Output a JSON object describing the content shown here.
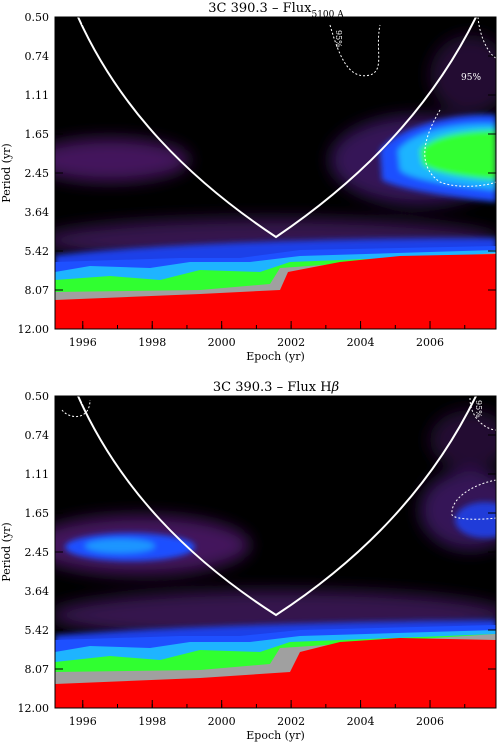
{
  "chart_data": [
    {
      "type": "heatmap",
      "title": "3C 390.3  – Flux",
      "title_sub": "5100 A",
      "title_mark": "°",
      "xlabel": "Epoch (yr)",
      "ylabel": "Period (yr)",
      "x_range": [
        1995.2,
        2007.9
      ],
      "x_ticks": [
        "1996",
        "1998",
        "2000",
        "2002",
        "2004",
        "2006"
      ],
      "x_tick_values": [
        1996,
        1998,
        2000,
        2002,
        2004,
        2006
      ],
      "y_ticks": [
        "0.50",
        "0.74",
        "1.11",
        "1.65",
        "2.45",
        "3.64",
        "5.42",
        "8.07",
        "12.00"
      ],
      "y_scale": "log",
      "cone_of_influence": {
        "x": [
          1995.2,
          1997.0,
          1998.5,
          2000.0,
          2001.6,
          2003.2,
          2004.8,
          2006.4,
          2007.9
        ],
        "period": [
          0.32,
          0.85,
          1.55,
          2.6,
          4.3,
          2.6,
          1.55,
          0.85,
          0.32
        ]
      },
      "contour_labels": [
        "95%",
        "95%"
      ],
      "colors": {
        "low": "#000000",
        "dark": "#1a0020",
        "purple": "#5a1e7a",
        "blue": "#1e50ff",
        "cyan": "#1eb4ff",
        "green": "#30ff30",
        "grey": "#a0a0a0",
        "red": "#ff0000"
      }
    },
    {
      "type": "heatmap",
      "title": "3C 390.3  – Flux H",
      "title_greek": "β",
      "xlabel": "Epoch (yr)",
      "ylabel": "Period (yr)",
      "x_range": [
        1995.2,
        2007.9
      ],
      "x_ticks": [
        "1996",
        "1998",
        "2000",
        "2002",
        "2004",
        "2006"
      ],
      "x_tick_values": [
        1996,
        1998,
        2000,
        2002,
        2004,
        2006
      ],
      "y_ticks": [
        "0.50",
        "0.74",
        "1.11",
        "1.65",
        "2.45",
        "3.64",
        "5.42",
        "8.07",
        "12.00"
      ],
      "y_scale": "log",
      "cone_of_influence": {
        "x": [
          1995.2,
          1997.0,
          1998.5,
          2000.0,
          2001.6,
          2003.2,
          2004.8,
          2006.4,
          2007.9
        ],
        "period": [
          0.32,
          0.85,
          1.55,
          2.6,
          4.3,
          2.6,
          1.55,
          0.85,
          0.32
        ]
      },
      "contour_labels": [
        "95%"
      ],
      "colors": {
        "low": "#000000",
        "dark": "#1a0020",
        "purple": "#5a1e7a",
        "blue": "#1e50ff",
        "cyan": "#1eb4ff",
        "green": "#30ff30",
        "grey": "#a0a0a0",
        "red": "#ff0000"
      }
    }
  ]
}
